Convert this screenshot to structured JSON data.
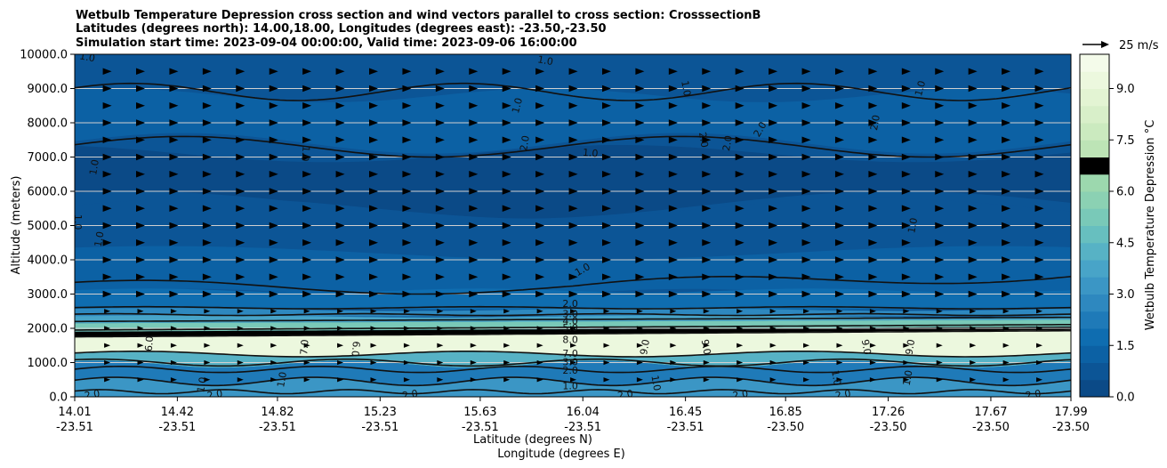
{
  "chart_data": {
    "type": "contour",
    "title_lines": [
      "Wetbulb Temperature Depression cross section and wind vectors parallel to cross section: CrosssectionB",
      "Latitudes (degrees north): 14.00,18.00, Longitudes (degrees east): -23.50,-23.50",
      "Simulation start time: 2023-09-04 00:00:00, Valid time: 2023-09-06 16:00:00"
    ],
    "ylabel": "Altitude (meters)",
    "xlabel_lat": "Latitude (degrees N)",
    "xlabel_lon": "Longitude (degrees E)",
    "ylim": [
      0,
      10000
    ],
    "y_ticks": [
      "0.0",
      "1000.0",
      "2000.0",
      "3000.0",
      "4000.0",
      "5000.0",
      "6000.0",
      "7000.0",
      "8000.0",
      "9000.0",
      "10000.0"
    ],
    "y_tick_values": [
      0,
      1000,
      2000,
      3000,
      4000,
      5000,
      6000,
      7000,
      8000,
      9000,
      10000
    ],
    "x_range": [
      14.01,
      17.99
    ],
    "x_ticks": [
      {
        "lat": "14.01",
        "lon": "-23.51"
      },
      {
        "lat": "14.42",
        "lon": "-23.51"
      },
      {
        "lat": "14.82",
        "lon": "-23.51"
      },
      {
        "lat": "15.23",
        "lon": "-23.51"
      },
      {
        "lat": "15.63",
        "lon": "-23.51"
      },
      {
        "lat": "16.04",
        "lon": "-23.51"
      },
      {
        "lat": "16.45",
        "lon": "-23.51"
      },
      {
        "lat": "16.85",
        "lon": "-23.50"
      },
      {
        "lat": "17.26",
        "lon": "-23.50"
      },
      {
        "lat": "17.67",
        "lon": "-23.50"
      },
      {
        "lat": "17.99",
        "lon": "-23.50"
      }
    ],
    "colorbar": {
      "label": "Wetbulb Temperature Depression °C",
      "range": [
        0,
        10
      ],
      "ticks": [
        "0.0",
        "1.5",
        "3.0",
        "4.5",
        "6.0",
        "7.5",
        "9.0"
      ],
      "tick_values": [
        0,
        1.5,
        3.0,
        4.5,
        6.0,
        7.5,
        9.0
      ],
      "colors": [
        "#0b4a87",
        "#0c5596",
        "#0c61a4",
        "#0f6db0",
        "#1f7ab8",
        "#2e88bf",
        "#3b96c5",
        "#48a4c8",
        "#57b2c5",
        "#67bfbf",
        "#79c9b8",
        "#8bd1b3",
        "#9cd8ae",
        "#add feb0",
        "#bde4b6",
        "#cbeabf",
        "#d8efc9",
        "#e3f4d3",
        "#ecf8de",
        "#f4fbea"
      ]
    },
    "wind_key": {
      "speed_label": "25 m/s"
    },
    "wind_vectors": {
      "direction": "east",
      "levels_m": [
        0,
        10000
      ],
      "spacing_m": 500
    },
    "contour_labels": [
      {
        "text": "1.0",
        "lat": 14.06,
        "alt": 9900,
        "rot": 10
      },
      {
        "text": "1.0",
        "lat": 14.09,
        "alt": 6700,
        "rot": -80
      },
      {
        "text": "1.0",
        "lat": 14.02,
        "alt": 5100,
        "rot": 90
      },
      {
        "text": "1.0",
        "lat": 14.11,
        "alt": 4600,
        "rot": -80
      },
      {
        "text": "1.0",
        "lat": 14.93,
        "alt": 7100,
        "rot": 95
      },
      {
        "text": "1.0",
        "lat": 15.78,
        "alt": 8500,
        "rot": -75
      },
      {
        "text": "2.0",
        "lat": 15.81,
        "alt": 7400,
        "rot": -80
      },
      {
        "text": "1.0",
        "lat": 15.89,
        "alt": 9800,
        "rot": 10
      },
      {
        "text": "1.0",
        "lat": 16.07,
        "alt": 7100,
        "rot": 5
      },
      {
        "text": "1.0",
        "lat": 16.04,
        "alt": 3700,
        "rot": -30
      },
      {
        "text": "1.0",
        "lat": 16.45,
        "alt": 9000,
        "rot": 80
      },
      {
        "text": "2.0",
        "lat": 16.52,
        "alt": 7500,
        "rot": 80
      },
      {
        "text": "2.0",
        "lat": 16.62,
        "alt": 7400,
        "rot": -80
      },
      {
        "text": "2.0",
        "lat": 16.75,
        "alt": 7800,
        "rot": -60
      },
      {
        "text": "2.0",
        "lat": 17.21,
        "alt": 8000,
        "rot": -80
      },
      {
        "text": "1.0",
        "lat": 17.39,
        "alt": 9000,
        "rot": -75
      },
      {
        "text": "1.0",
        "lat": 17.36,
        "alt": 5000,
        "rot": -80
      },
      {
        "text": "2.0",
        "lat": 15.99,
        "alt": 2700,
        "rot": 0
      },
      {
        "text": "3.0",
        "lat": 15.99,
        "alt": 2400,
        "rot": 0
      },
      {
        "text": "4.0",
        "lat": 15.99,
        "alt": 2200,
        "rot": 0
      },
      {
        "text": "5.0",
        "lat": 15.99,
        "alt": 2000,
        "rot": 0
      },
      {
        "text": "8.0",
        "lat": 15.99,
        "alt": 1650,
        "rot": 0
      },
      {
        "text": "7.0",
        "lat": 15.99,
        "alt": 1250,
        "rot": 0
      },
      {
        "text": "3.0",
        "lat": 15.99,
        "alt": 1000,
        "rot": 0
      },
      {
        "text": "2.0",
        "lat": 15.99,
        "alt": 750,
        "rot": 0
      },
      {
        "text": "1.0",
        "lat": 15.99,
        "alt": 300,
        "rot": 0
      },
      {
        "text": "6.0",
        "lat": 14.31,
        "alt": 1550,
        "rot": -85
      },
      {
        "text": "7.0",
        "lat": 14.93,
        "alt": 1450,
        "rot": -85
      },
      {
        "text": "6.0",
        "lat": 15.13,
        "alt": 1400,
        "rot": 95
      },
      {
        "text": "1.0",
        "lat": 14.84,
        "alt": 500,
        "rot": -80
      },
      {
        "text": "1.0",
        "lat": 14.52,
        "alt": 350,
        "rot": -80
      },
      {
        "text": "9.0",
        "lat": 16.29,
        "alt": 1450,
        "rot": -80
      },
      {
        "text": "9.0",
        "lat": 16.53,
        "alt": 1450,
        "rot": 80
      },
      {
        "text": "9.0",
        "lat": 17.17,
        "alt": 1450,
        "rot": 80
      },
      {
        "text": "9.0",
        "lat": 17.35,
        "alt": 1450,
        "rot": -80
      },
      {
        "text": "2.0",
        "lat": 14.08,
        "alt": 50,
        "rot": -10
      },
      {
        "text": "2.0",
        "lat": 14.57,
        "alt": 50,
        "rot": -10
      },
      {
        "text": "2.0",
        "lat": 15.35,
        "alt": 50,
        "rot": -10
      },
      {
        "text": "2.0",
        "lat": 16.21,
        "alt": 50,
        "rot": -10
      },
      {
        "text": "2.0",
        "lat": 16.67,
        "alt": 50,
        "rot": -10
      },
      {
        "text": "2.0",
        "lat": 17.08,
        "alt": 50,
        "rot": -10
      },
      {
        "text": "2.0",
        "lat": 17.84,
        "alt": 50,
        "rot": -10
      },
      {
        "text": "1.0",
        "lat": 16.33,
        "alt": 400,
        "rot": 80
      },
      {
        "text": "1.0",
        "lat": 17.05,
        "alt": 550,
        "rot": 80
      },
      {
        "text": "1.0",
        "lat": 17.34,
        "alt": 550,
        "rot": -80
      }
    ]
  }
}
